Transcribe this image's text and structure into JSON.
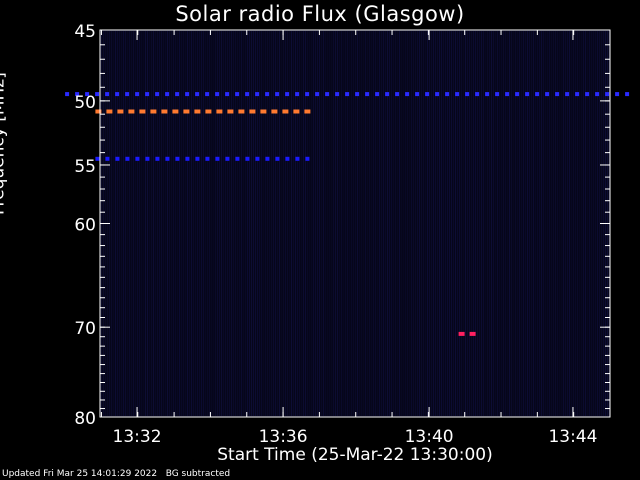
{
  "chart_data": {
    "type": "heatmap",
    "title": "Solar radio Flux (Glasgow)",
    "xlabel": "Start Time (25-Mar-22 13:30:00)",
    "ylabel": "Frequency [MHz]",
    "x_range_minutes": [
      13.516,
      13.75
    ],
    "x_ticks": [
      {
        "value": 13.533,
        "label": "13:32"
      },
      {
        "value": 13.6,
        "label": "13:36"
      },
      {
        "value": 13.667,
        "label": "13:40"
      },
      {
        "value": 13.733,
        "label": "13:44"
      }
    ],
    "y_range_mhz": [
      45,
      80
    ],
    "y_ticks": [
      {
        "value": 45,
        "label": "45"
      },
      {
        "value": 50,
        "label": "50"
      },
      {
        "value": 55,
        "label": "55"
      },
      {
        "value": 60,
        "label": "60"
      },
      {
        "value": 70,
        "label": "70"
      },
      {
        "value": 80,
        "label": "80"
      }
    ],
    "features": [
      {
        "freq_mhz": 49.5,
        "t_start": "13:30:00",
        "t_end": "13:45:30",
        "intensity": "medium",
        "color": "#2a2aff"
      },
      {
        "freq_mhz": 50.8,
        "t_start": "13:30:50",
        "t_end": "13:36:40",
        "intensity": "high",
        "color": "#ff7a30"
      },
      {
        "freq_mhz": 54.5,
        "t_start": "13:30:50",
        "t_end": "13:36:40",
        "intensity": "medium",
        "color": "#1a1aff"
      },
      {
        "freq_mhz": 70.7,
        "t_start": "13:40:50",
        "t_end": "13:41:20",
        "intensity": "high",
        "color": "#ff2060"
      }
    ]
  },
  "footer": {
    "updated": "Updated Fri Mar 25 14:01:29 2022",
    "mode": "BG subtracted"
  },
  "colors": {
    "background": "#000000",
    "plot_background": "#06061a",
    "axes": "#ffffff"
  }
}
